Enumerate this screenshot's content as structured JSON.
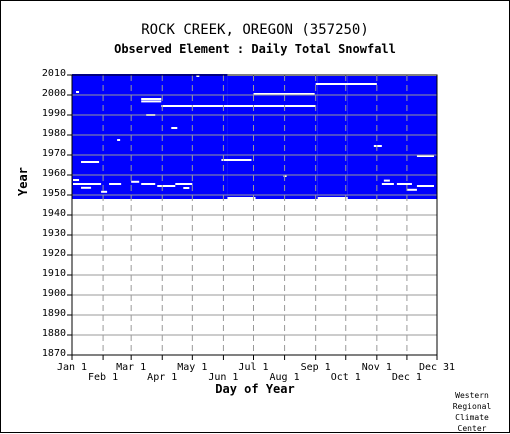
{
  "chart_data": {
    "type": "heatmap",
    "title": "ROCK CREEK, OREGON   (357250)",
    "subtitle": "Observed Element : Daily Total Snowfall",
    "xlabel": "Day of Year",
    "ylabel": "Year",
    "xlim": [
      1,
      365
    ],
    "ylim": [
      1870,
      2010
    ],
    "x_ticks_upper": [
      {
        "label": "Jan 1",
        "doy": 1
      },
      {
        "label": "Mar 1",
        "doy": 60
      },
      {
        "label": "May 1",
        "doy": 121
      },
      {
        "label": "Jul 1",
        "doy": 182
      },
      {
        "label": "Sep 1",
        "doy": 244
      },
      {
        "label": "Nov 1",
        "doy": 305
      },
      {
        "label": "Dec 31",
        "doy": 365
      }
    ],
    "x_ticks_lower": [
      {
        "label": "Feb 1",
        "doy": 32
      },
      {
        "label": "Apr 1",
        "doy": 91
      },
      {
        "label": "Jun 1",
        "doy": 152
      },
      {
        "label": "Aug 1",
        "doy": 213
      },
      {
        "label": "Oct 1",
        "doy": 274
      },
      {
        "label": "Dec 1",
        "doy": 335
      }
    ],
    "y_ticks": [
      1870,
      1880,
      1890,
      1900,
      1910,
      1920,
      1930,
      1940,
      1950,
      1960,
      1970,
      1980,
      1990,
      2000,
      2010
    ],
    "data_color": "#0000ff",
    "missing_color": "#ffffff",
    "grid": true,
    "record_start": [
      {
        "from_doy": 1,
        "to_doy": 156,
        "year": 1948
      },
      {
        "from_doy": 156,
        "to_doy": 184,
        "year": 1949
      },
      {
        "from_doy": 184,
        "to_doy": 246,
        "year": 1948
      },
      {
        "from_doy": 246,
        "to_doy": 276,
        "year": 1949
      },
      {
        "from_doy": 276,
        "to_doy": 366,
        "year": 1948
      }
    ],
    "record_end": [
      {
        "from_doy": 1,
        "to_doy": 156,
        "year": 2010.5
      },
      {
        "from_doy": 156,
        "to_doy": 366,
        "year": 2009.5
      }
    ],
    "missing_runs": [
      {
        "year": 2005.5,
        "from_doy": 244,
        "to_doy": 305
      },
      {
        "year": 2000.5,
        "from_doy": 182,
        "to_doy": 243
      },
      {
        "year": 1998,
        "from_doy": 70,
        "to_doy": 90
      },
      {
        "year": 1996.8,
        "from_doy": 70,
        "to_doy": 90
      },
      {
        "year": 1994.5,
        "from_doy": 90,
        "to_doy": 244
      },
      {
        "year": 1990,
        "from_doy": 75,
        "to_doy": 84
      },
      {
        "year": 1983.5,
        "from_doy": 100,
        "to_doy": 106
      },
      {
        "year": 1974.5,
        "from_doy": 302,
        "to_doy": 310
      },
      {
        "year": 1967.5,
        "from_doy": 150,
        "to_doy": 180
      },
      {
        "year": 1969.5,
        "from_doy": 345,
        "to_doy": 362
      },
      {
        "year": 1966.5,
        "from_doy": 10,
        "to_doy": 28
      },
      {
        "year": 2001.5,
        "from_doy": 5,
        "to_doy": 8
      },
      {
        "year": 2009.5,
        "from_doy": 125,
        "to_doy": 128
      },
      {
        "year": 1977.5,
        "from_doy": 46,
        "to_doy": 49
      },
      {
        "year": 1959.5,
        "from_doy": 212,
        "to_doy": 215
      },
      {
        "year": 1955.5,
        "from_doy": 2,
        "to_doy": 30
      },
      {
        "year": 1955.5,
        "from_doy": 38,
        "to_doy": 50
      },
      {
        "year": 1956.6,
        "from_doy": 60,
        "to_doy": 68
      },
      {
        "year": 1955.5,
        "from_doy": 70,
        "to_doy": 84
      },
      {
        "year": 1954.5,
        "from_doy": 86,
        "to_doy": 104
      },
      {
        "year": 1955.5,
        "from_doy": 104,
        "to_doy": 121
      },
      {
        "year": 1953.6,
        "from_doy": 10,
        "to_doy": 20
      },
      {
        "year": 1955.5,
        "from_doy": 310,
        "to_doy": 322
      },
      {
        "year": 1955.5,
        "from_doy": 325,
        "to_doy": 340
      },
      {
        "year": 1954.5,
        "from_doy": 345,
        "to_doy": 362
      },
      {
        "year": 1952.6,
        "from_doy": 335,
        "to_doy": 345
      },
      {
        "year": 1951.6,
        "from_doy": 30,
        "to_doy": 36
      },
      {
        "year": 1953.5,
        "from_doy": 112,
        "to_doy": 118
      },
      {
        "year": 1957.5,
        "from_doy": 2,
        "to_doy": 8
      },
      {
        "year": 1957.2,
        "from_doy": 312,
        "to_doy": 318
      }
    ]
  },
  "credit": {
    "line1": "Western",
    "line2": "Regional",
    "line3": "Climate",
    "line4": "Center"
  }
}
